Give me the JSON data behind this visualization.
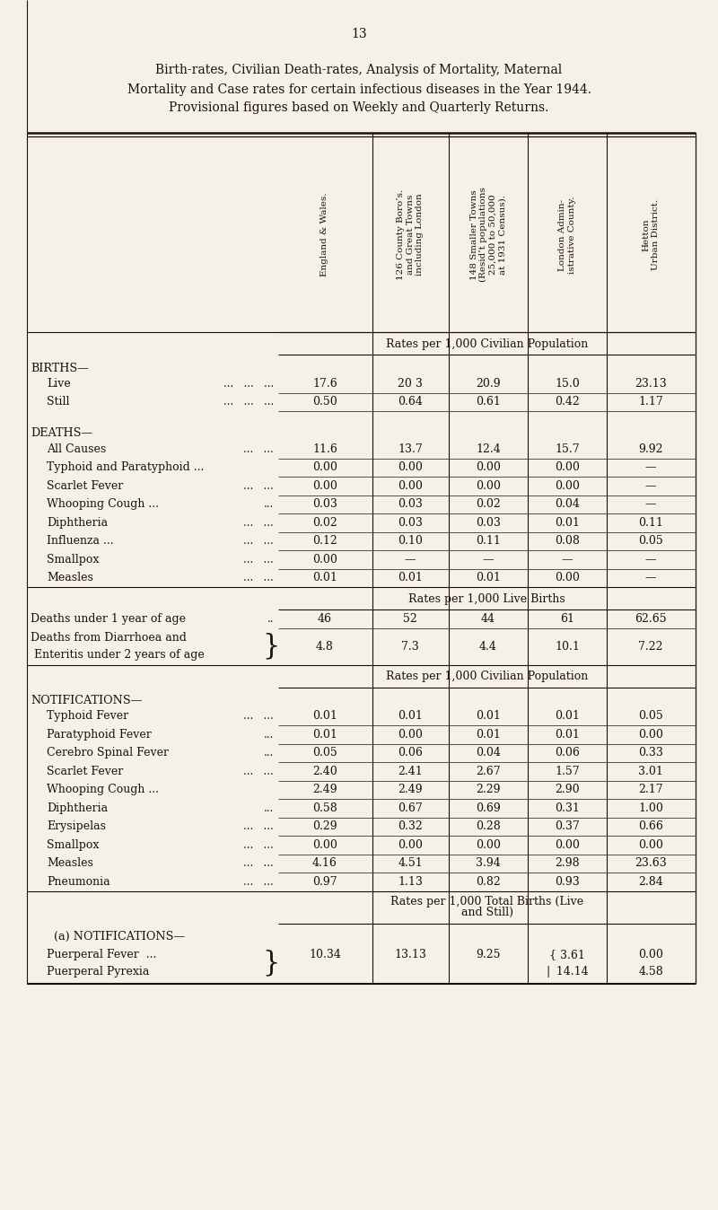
{
  "page_number": "13",
  "title_lines": [
    "Birth-rates, Civilian Death-rates, Analysis of Mortality, Maternal",
    "Mortality and Case rates for certain infectious diseases in the Year 1944.",
    "Provisional figures based on Weekly and Quarterly Returns."
  ],
  "bg_color": "#f5f0e8",
  "text_color": "#1a1008",
  "col_headers": [
    "England & Wales.",
    "126 County Boro’s.\nand Great Towns\nincluding London",
    "148 Smaller Towns\n(Resid’t populations\n25,000 to 50,000\nat 1931 Census).",
    "London Admin-\nistrative County.",
    "Hetton\nUrban District."
  ],
  "sections": [
    {
      "type": "rate_header",
      "text": "Rates per 1,000 Civilian Population"
    },
    {
      "type": "section_label",
      "text": "BIRTHS—"
    },
    {
      "type": "data_row",
      "label": "Live",
      "dots": "...   ...   ...",
      "values": [
        "17.6",
        "20 3",
        "20.9",
        "15.0",
        "23.13"
      ]
    },
    {
      "type": "data_row",
      "label": "Still",
      "dots": "...   ...   ...",
      "values": [
        "0.50",
        "0.64",
        "0.61",
        "0.42",
        "1.17"
      ]
    },
    {
      "type": "spacer"
    },
    {
      "type": "section_label",
      "text": "DEATHS—"
    },
    {
      "type": "data_row",
      "label": "All Causes",
      "dots": "...   ...",
      "values": [
        "11.6",
        "13.7",
        "12.4",
        "15.7",
        "9.92"
      ]
    },
    {
      "type": "data_row",
      "label": "Typhoid and Paratyphoid ...",
      "dots": "",
      "values": [
        "0.00",
        "0.00",
        "0.00",
        "0.00",
        "—"
      ]
    },
    {
      "type": "data_row",
      "label": "Scarlet Fever",
      "dots": "...   ...",
      "values": [
        "0.00",
        "0.00",
        "0.00",
        "0.00",
        "—"
      ]
    },
    {
      "type": "data_row",
      "label": "Whooping Cough ...",
      "dots": "...",
      "values": [
        "0.03",
        "0.03",
        "0.02",
        "0.04",
        "—"
      ]
    },
    {
      "type": "data_row",
      "label": "Diphtheria",
      "dots": "...   ...",
      "values": [
        "0.02",
        "0.03",
        "0.03",
        "0.01",
        "0.11"
      ]
    },
    {
      "type": "data_row",
      "label": "Influenza ...",
      "dots": "...   ...",
      "values": [
        "0.12",
        "0.10",
        "0.11",
        "0.08",
        "0.05"
      ]
    },
    {
      "type": "data_row",
      "label": "Smallpox",
      "dots": "...   ...",
      "values": [
        "0.00",
        "—",
        "—",
        "—",
        "—"
      ]
    },
    {
      "type": "data_row",
      "label": "Measles",
      "dots": "...   ...",
      "values": [
        "0.01",
        "0.01",
        "0.01",
        "0.00",
        "—"
      ]
    },
    {
      "type": "rate_header",
      "text": "Rates per 1,000 Live Births"
    },
    {
      "type": "deaths_under1",
      "label": "Deaths under 1 year of age",
      "dots": "..",
      "values": [
        "46",
        "52",
        "44",
        "61",
        "62.65"
      ]
    },
    {
      "type": "brace_row",
      "label1": "Deaths from Diarrhoea and",
      "label2": " Enteritis under 2 years of age",
      "values": [
        "4.8",
        "7.3",
        "4.4",
        "10.1",
        "7.22"
      ]
    },
    {
      "type": "rate_header",
      "text": "Rates per 1,000 Civilian Population"
    },
    {
      "type": "section_label",
      "text": "NOTIFICATIONS—"
    },
    {
      "type": "data_row",
      "label": "Typhoid Fever",
      "dots": "...   ...",
      "values": [
        "0.01",
        "0.01",
        "0.01",
        "0.01",
        "0.05"
      ]
    },
    {
      "type": "data_row",
      "label": "Paratyphoid Fever",
      "dots": "...",
      "values": [
        "0.01",
        "0.00",
        "0.01",
        "0.01",
        "0.00"
      ]
    },
    {
      "type": "data_row",
      "label": "Cerebro Spinal Fever",
      "dots": "...",
      "values": [
        "0.05",
        "0.06",
        "0.04",
        "0.06",
        "0.33"
      ]
    },
    {
      "type": "data_row",
      "label": "Scarlet Fever",
      "dots": "...   ...",
      "values": [
        "2.40",
        "2.41",
        "2.67",
        "1.57",
        "3.01"
      ]
    },
    {
      "type": "data_row",
      "label": "Whooping Cough ...",
      "dots": "",
      "values": [
        "2.49",
        "2.49",
        "2.29",
        "2.90",
        "2.17"
      ]
    },
    {
      "type": "data_row",
      "label": "Diphtheria",
      "dots": "...",
      "values": [
        "0.58",
        "0.67",
        "0.69",
        "0.31",
        "1.00"
      ]
    },
    {
      "type": "data_row",
      "label": "Erysipelas",
      "dots": "...   ...",
      "values": [
        "0.29",
        "0.32",
        "0.28",
        "0.37",
        "0.66"
      ]
    },
    {
      "type": "data_row",
      "label": "Smallpox",
      "dots": "...   ...",
      "values": [
        "0.00",
        "0.00",
        "0.00",
        "0.00",
        "0.00"
      ]
    },
    {
      "type": "data_row",
      "label": "Measles",
      "dots": "...   ...",
      "values": [
        "4.16",
        "4.51",
        "3.94",
        "2.98",
        "23.63"
      ]
    },
    {
      "type": "data_row",
      "label": "Pneumonia",
      "dots": "...   ...",
      "values": [
        "0.97",
        "1.13",
        "0.82",
        "0.93",
        "2.84"
      ]
    },
    {
      "type": "rate_header2",
      "text1": "Rates per 1,000 Total Births (Live",
      "text2": "and Still)"
    },
    {
      "type": "section_label",
      "text": "(a) NOTIFICATIONS—"
    },
    {
      "type": "brace_row2",
      "label1": "Puerperal Fever  ...",
      "label2": "Puerperal Pyrexia",
      "values": [
        "10.34",
        "13.13",
        "9.25",
        "{ 3.61",
        "0.00"
      ],
      "values2": [
        "",
        "",
        "",
        "|  14.14",
        "4.58"
      ]
    }
  ]
}
